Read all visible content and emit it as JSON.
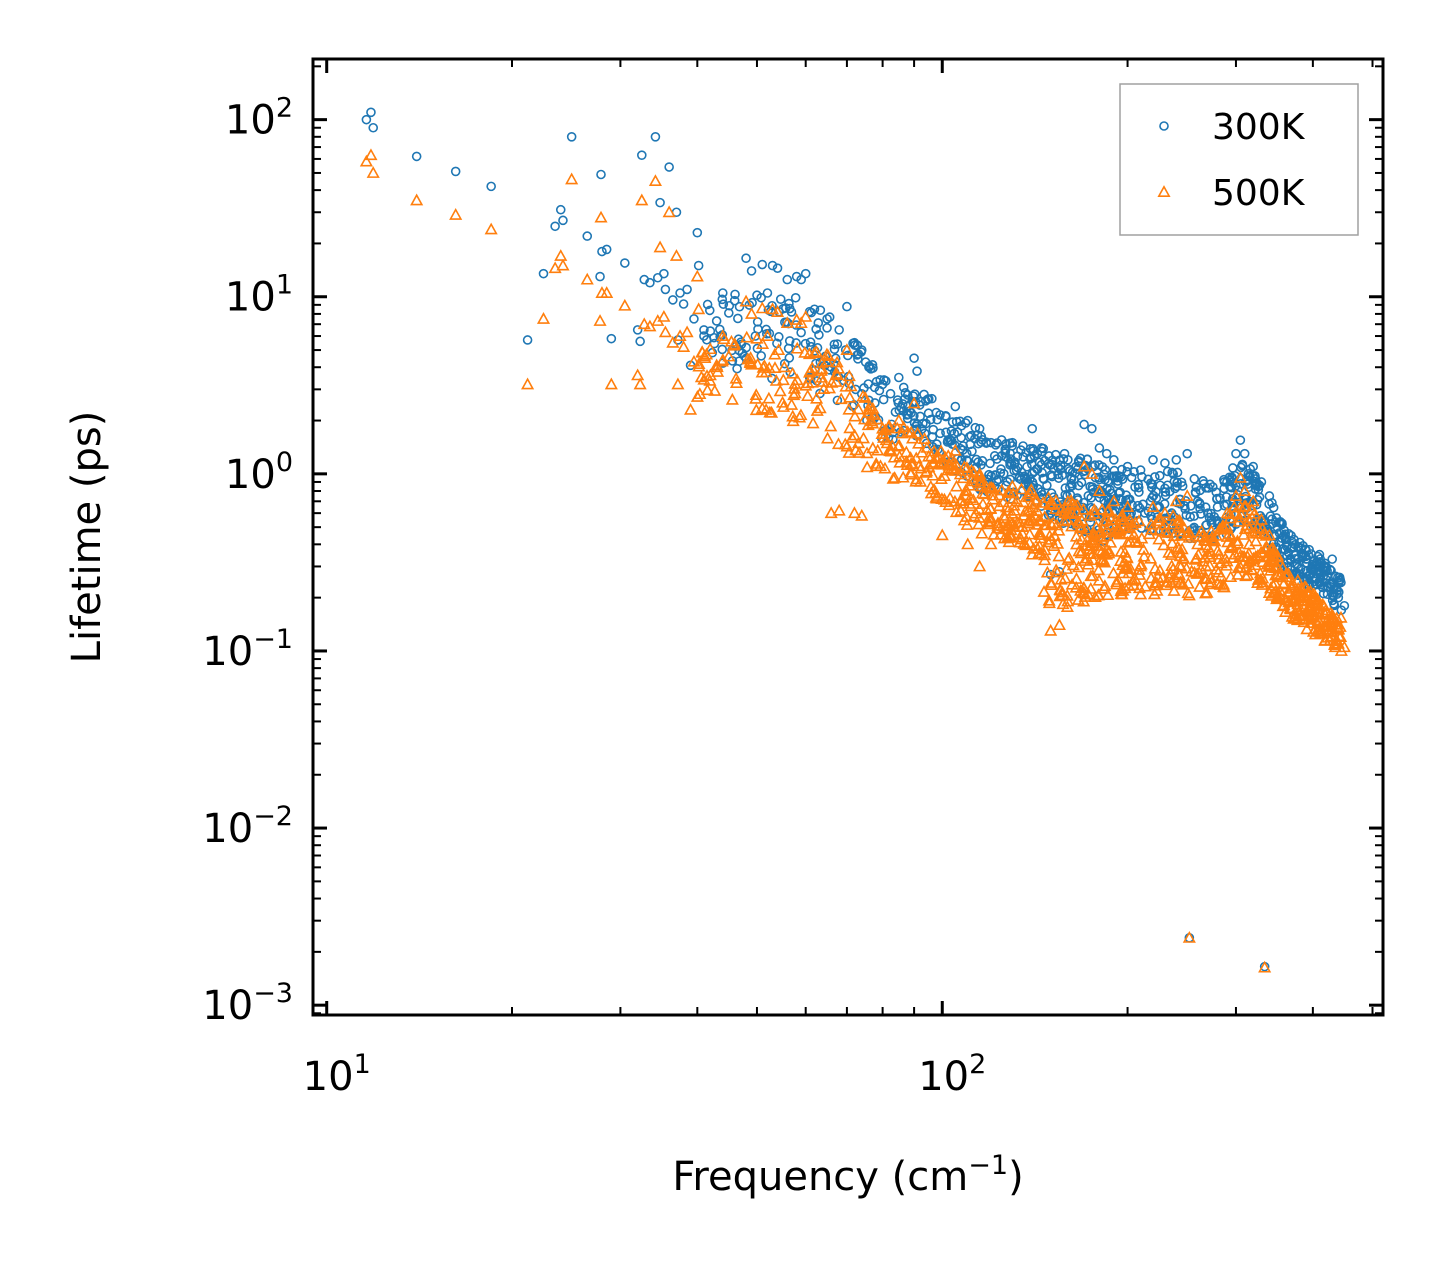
{
  "chart_data": {
    "type": "scatter",
    "xscale": "log",
    "yscale": "log",
    "xlim": [
      9.5,
      520
    ],
    "ylim": [
      0.00088,
      220
    ],
    "xlabel": "Frequency (cm",
    "xlabel_sup": "−1",
    "xlabel_end": ")",
    "ylabel": "Lifetime (ps)",
    "x_ticks": [
      {
        "value": 10,
        "base": "10",
        "exp": "1"
      },
      {
        "value": 100,
        "base": "10",
        "exp": "2"
      }
    ],
    "y_ticks": [
      {
        "value": 0.001,
        "base": "10",
        "exp": "−3"
      },
      {
        "value": 0.01,
        "base": "10",
        "exp": "−2"
      },
      {
        "value": 0.1,
        "base": "10",
        "exp": "−1"
      },
      {
        "value": 1,
        "base": "10",
        "exp": "0"
      },
      {
        "value": 10,
        "base": "10",
        "exp": "1"
      },
      {
        "value": 100,
        "base": "10",
        "exp": "2"
      }
    ],
    "legend_position": "top-right",
    "series": [
      {
        "name": "300K",
        "marker": "circle",
        "color": "#1f77b4",
        "points": [
          [
            11.6,
            100
          ],
          [
            11.8,
            110
          ],
          [
            11.9,
            90
          ],
          [
            14,
            62
          ],
          [
            16.2,
            51
          ],
          [
            18.5,
            42
          ],
          [
            21.2,
            5.7
          ],
          [
            22.5,
            13.5
          ],
          [
            23.5,
            25
          ],
          [
            24,
            31
          ],
          [
            24.2,
            27
          ],
          [
            25,
            80
          ],
          [
            26.5,
            22
          ],
          [
            27.8,
            13
          ],
          [
            27.9,
            49
          ],
          [
            28,
            18
          ],
          [
            28.5,
            18.5
          ],
          [
            29,
            5.8
          ],
          [
            30.5,
            15.5
          ],
          [
            32,
            6.5
          ],
          [
            32.3,
            5.6
          ],
          [
            32.5,
            63
          ],
          [
            32.8,
            12.5
          ],
          [
            33.5,
            12
          ],
          [
            34.2,
            80
          ],
          [
            34.5,
            12.8
          ],
          [
            34.8,
            34
          ],
          [
            35.3,
            13.5
          ],
          [
            35.5,
            11
          ],
          [
            36,
            54
          ],
          [
            36.5,
            9.6
          ],
          [
            37,
            30
          ],
          [
            37.2,
            5.7
          ],
          [
            37.5,
            10.5
          ],
          [
            38,
            9.1
          ],
          [
            38.5,
            11
          ],
          [
            39,
            4.1
          ],
          [
            39.5,
            7.5
          ],
          [
            40,
            23
          ],
          [
            40.2,
            15
          ],
          [
            41,
            6
          ],
          [
            42,
            6.4
          ],
          [
            43,
            7.3
          ],
          [
            44,
            10.5
          ],
          [
            45,
            8.1
          ],
          [
            46,
            9.5
          ],
          [
            48,
            16.5
          ],
          [
            49,
            14
          ],
          [
            50,
            10.2
          ],
          [
            51,
            15.2
          ],
          [
            52,
            10.5
          ],
          [
            53,
            15
          ],
          [
            54,
            14.5
          ],
          [
            56,
            12.5
          ],
          [
            58,
            13
          ],
          [
            59,
            12.5
          ],
          [
            60,
            13.5
          ],
          [
            62,
            8.5
          ],
          [
            65,
            7.5
          ],
          [
            68,
            6.5
          ],
          [
            70,
            8.8
          ],
          [
            72,
            5.5
          ],
          [
            74,
            5
          ],
          [
            76,
            4
          ],
          [
            80,
            3.2
          ],
          [
            85,
            3.5
          ],
          [
            90,
            4.5
          ],
          [
            91,
            3.8
          ],
          [
            95,
            2.2
          ],
          [
            105,
            2.4
          ],
          [
            110,
            2
          ],
          [
            115,
            1.8
          ],
          [
            120,
            1.5
          ],
          [
            130,
            1.5
          ],
          [
            140,
            1.8
          ],
          [
            145,
            1.4
          ],
          [
            150,
            0.27
          ],
          [
            155,
            0.28
          ],
          [
            158,
            1.3
          ],
          [
            160,
            1.2
          ],
          [
            165,
            1.1
          ],
          [
            170,
            1.9
          ],
          [
            175,
            1.8
          ],
          [
            180,
            1.4
          ],
          [
            185,
            1.3
          ],
          [
            190,
            1.2
          ],
          [
            200,
            1.1
          ],
          [
            210,
            1.05
          ],
          [
            220,
            1.2
          ],
          [
            230,
            1.15
          ],
          [
            240,
            1.2
          ],
          [
            250,
            1.3
          ],
          [
            260,
            0.7
          ],
          [
            270,
            0.6
          ],
          [
            280,
            0.65
          ],
          [
            290,
            0.9
          ],
          [
            300,
            1.3
          ],
          [
            305,
            1.55
          ],
          [
            310,
            1.3
          ],
          [
            320,
            1.1
          ],
          [
            330,
            0.9
          ],
          [
            340,
            0.75
          ],
          [
            350,
            0.5
          ],
          [
            370,
            0.38
          ],
          [
            390,
            0.33
          ],
          [
            410,
            0.35
          ],
          [
            420,
            0.3
          ],
          [
            430,
            0.33
          ],
          [
            440,
            0.2
          ],
          [
            445,
            0.17
          ],
          [
            450,
            0.18
          ],
          [
            252,
            0.0024
          ],
          [
            334,
            0.00165
          ]
        ],
        "band": [
          [
            40,
            4.5,
            10
          ],
          [
            50,
            3.5,
            11
          ],
          [
            60,
            3,
            10
          ],
          [
            70,
            2.3,
            7
          ],
          [
            80,
            1.5,
            3.5
          ],
          [
            90,
            1.6,
            3.2
          ],
          [
            100,
            1.2,
            2.5
          ],
          [
            110,
            0.85,
            2
          ],
          [
            120,
            0.75,
            1.7
          ],
          [
            130,
            0.7,
            1.5
          ],
          [
            140,
            0.7,
            1.5
          ],
          [
            150,
            0.55,
            1.5
          ],
          [
            160,
            0.5,
            1.35
          ],
          [
            170,
            0.45,
            1.3
          ],
          [
            180,
            0.4,
            1.2
          ],
          [
            190,
            0.42,
            1.15
          ],
          [
            200,
            0.45,
            1.1
          ],
          [
            220,
            0.45,
            1.05
          ],
          [
            240,
            0.45,
            1.1
          ],
          [
            260,
            0.4,
            0.95
          ],
          [
            280,
            0.4,
            0.9
          ],
          [
            300,
            0.5,
            1.3
          ],
          [
            320,
            0.5,
            1.15
          ],
          [
            340,
            0.35,
            0.75
          ],
          [
            360,
            0.28,
            0.5
          ],
          [
            380,
            0.25,
            0.42
          ],
          [
            400,
            0.22,
            0.38
          ],
          [
            420,
            0.2,
            0.32
          ],
          [
            445,
            0.16,
            0.28
          ]
        ]
      },
      {
        "name": "500K",
        "marker": "triangle",
        "color": "#ff7f0e",
        "points": [
          [
            11.6,
            58
          ],
          [
            11.8,
            63
          ],
          [
            11.9,
            50
          ],
          [
            14,
            35
          ],
          [
            16.2,
            29
          ],
          [
            18.5,
            24
          ],
          [
            21.2,
            3.2
          ],
          [
            22.5,
            7.5
          ],
          [
            23.5,
            14.5
          ],
          [
            24,
            17
          ],
          [
            24.2,
            15
          ],
          [
            25,
            46
          ],
          [
            26.5,
            12.5
          ],
          [
            27.8,
            7.3
          ],
          [
            27.9,
            28
          ],
          [
            28,
            10.5
          ],
          [
            28.5,
            10.5
          ],
          [
            29,
            3.2
          ],
          [
            30.5,
            8.9
          ],
          [
            32,
            3.6
          ],
          [
            32.3,
            3.2
          ],
          [
            32.5,
            35
          ],
          [
            32.8,
            7
          ],
          [
            33.5,
            6.8
          ],
          [
            34.2,
            45
          ],
          [
            34.5,
            7.3
          ],
          [
            34.8,
            19
          ],
          [
            35.3,
            7.7
          ],
          [
            35.5,
            6.3
          ],
          [
            36,
            30
          ],
          [
            36.5,
            5.5
          ],
          [
            37,
            17
          ],
          [
            37.2,
            3.2
          ],
          [
            37.5,
            6
          ],
          [
            38,
            5.2
          ],
          [
            38.5,
            6.3
          ],
          [
            39,
            2.3
          ],
          [
            39.5,
            4.3
          ],
          [
            40,
            13
          ],
          [
            40.2,
            8.5
          ],
          [
            41,
            3.4
          ],
          [
            42,
            3.6
          ],
          [
            43,
            4.1
          ],
          [
            44,
            6
          ],
          [
            45,
            4.6
          ],
          [
            46,
            5.4
          ],
          [
            48,
            9.4
          ],
          [
            49,
            8
          ],
          [
            50,
            5.8
          ],
          [
            51,
            8.6
          ],
          [
            52,
            6
          ],
          [
            53,
            8.5
          ],
          [
            54,
            8.2
          ],
          [
            56,
            7.1
          ],
          [
            58,
            7.4
          ],
          [
            59,
            7.1
          ],
          [
            60,
            7.7
          ],
          [
            62,
            4.8
          ],
          [
            65,
            4.3
          ],
          [
            66,
            0.6
          ],
          [
            68,
            0.62
          ],
          [
            70,
            5
          ],
          [
            72,
            0.6
          ],
          [
            74,
            0.58
          ],
          [
            76,
            2.3
          ],
          [
            80,
            1.8
          ],
          [
            85,
            2
          ],
          [
            90,
            2.5
          ],
          [
            95,
            1.25
          ],
          [
            100,
            0.45
          ],
          [
            105,
            1.35
          ],
          [
            110,
            0.4
          ],
          [
            115,
            0.3
          ],
          [
            120,
            0.4
          ],
          [
            130,
            0.85
          ],
          [
            140,
            0.35
          ],
          [
            150,
            0.13
          ],
          [
            155,
            0.14
          ],
          [
            158,
            0.6
          ],
          [
            160,
            0.7
          ],
          [
            170,
            1.1
          ],
          [
            175,
            1
          ],
          [
            180,
            0.8
          ],
          [
            190,
            0.7
          ],
          [
            200,
            0.65
          ],
          [
            210,
            0.3
          ],
          [
            220,
            0.65
          ],
          [
            230,
            0.6
          ],
          [
            240,
            0.7
          ],
          [
            250,
            0.75
          ],
          [
            260,
            0.4
          ],
          [
            270,
            0.35
          ],
          [
            290,
            0.5
          ],
          [
            300,
            0.75
          ],
          [
            305,
            0.95
          ],
          [
            310,
            0.8
          ],
          [
            320,
            0.7
          ],
          [
            330,
            0.55
          ],
          [
            340,
            0.45
          ],
          [
            350,
            0.3
          ],
          [
            370,
            0.23
          ],
          [
            390,
            0.2
          ],
          [
            410,
            0.18
          ],
          [
            420,
            0.17
          ],
          [
            430,
            0.16
          ],
          [
            440,
            0.11
          ],
          [
            445,
            0.1
          ],
          [
            450,
            0.105
          ],
          [
            252,
            0.0024
          ],
          [
            334,
            0.00163
          ]
        ],
        "band": [
          [
            40,
            2.4,
            5.5
          ],
          [
            50,
            2,
            6.5
          ],
          [
            60,
            1.8,
            6
          ],
          [
            70,
            1.3,
            4
          ],
          [
            80,
            0.9,
            2
          ],
          [
            90,
            0.9,
            1.8
          ],
          [
            100,
            0.65,
            1.4
          ],
          [
            110,
            0.5,
            1.1
          ],
          [
            120,
            0.42,
            0.95
          ],
          [
            130,
            0.38,
            0.85
          ],
          [
            140,
            0.35,
            0.85
          ],
          [
            150,
            0.15,
            0.8
          ],
          [
            160,
            0.17,
            0.75
          ],
          [
            170,
            0.18,
            0.7
          ],
          [
            180,
            0.2,
            0.65
          ],
          [
            190,
            0.2,
            0.65
          ],
          [
            200,
            0.2,
            0.6
          ],
          [
            220,
            0.2,
            0.58
          ],
          [
            240,
            0.2,
            0.6
          ],
          [
            260,
            0.2,
            0.5
          ],
          [
            280,
            0.2,
            0.5
          ],
          [
            300,
            0.25,
            0.75
          ],
          [
            320,
            0.25,
            0.65
          ],
          [
            340,
            0.2,
            0.42
          ],
          [
            360,
            0.16,
            0.3
          ],
          [
            380,
            0.14,
            0.25
          ],
          [
            400,
            0.12,
            0.22
          ],
          [
            420,
            0.11,
            0.18
          ],
          [
            445,
            0.1,
            0.16
          ]
        ]
      }
    ]
  }
}
